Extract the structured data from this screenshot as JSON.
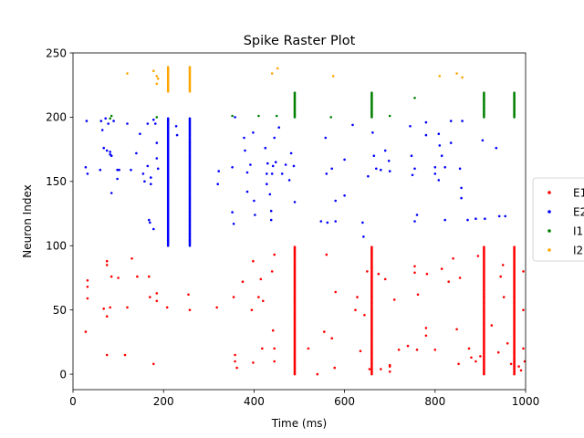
{
  "chart_data": {
    "type": "scatter",
    "title": "Spike Raster Plot",
    "xlabel": "Time (ms)",
    "ylabel": "Neuron Index",
    "xlim": [
      0,
      1000
    ],
    "ylim": [
      -12,
      250
    ],
    "xticks": [
      0,
      200,
      400,
      600,
      800,
      1000
    ],
    "yticks": [
      0,
      50,
      100,
      150,
      200,
      250
    ],
    "grid": false,
    "legend_position": "right (clipped)",
    "legend_labels": [
      "E1",
      "E2",
      "I1",
      "I2"
    ],
    "series": [
      {
        "name": "E1",
        "color": "#ff0000",
        "neurons": [
          0,
          99
        ],
        "bursts": [
          490,
          660,
          908,
          975
        ],
        "points": [
          [
            28,
            33
          ],
          [
            32,
            73
          ],
          [
            32,
            68
          ],
          [
            32,
            59
          ],
          [
            68,
            51
          ],
          [
            75,
            88
          ],
          [
            75,
            85
          ],
          [
            75,
            45
          ],
          [
            75,
            15
          ],
          [
            82,
            52
          ],
          [
            85,
            76
          ],
          [
            100,
            75
          ],
          [
            115,
            15
          ],
          [
            120,
            52
          ],
          [
            130,
            90
          ],
          [
            142,
            76
          ],
          [
            168,
            76
          ],
          [
            170,
            60
          ],
          [
            178,
            8
          ],
          [
            185,
            63
          ],
          [
            185,
            57
          ],
          [
            208,
            52
          ],
          [
            255,
            62
          ],
          [
            258,
            50
          ],
          [
            318,
            52
          ],
          [
            355,
            60
          ],
          [
            358,
            10
          ],
          [
            358,
            15
          ],
          [
            362,
            5
          ],
          [
            375,
            72
          ],
          [
            395,
            50
          ],
          [
            398,
            88
          ],
          [
            398,
            9
          ],
          [
            410,
            60
          ],
          [
            415,
            74
          ],
          [
            418,
            20
          ],
          [
            420,
            57
          ],
          [
            440,
            80
          ],
          [
            445,
            93
          ],
          [
            442,
            34
          ],
          [
            445,
            20
          ],
          [
            445,
            10
          ],
          [
            520,
            20
          ],
          [
            540,
            0
          ],
          [
            555,
            33
          ],
          [
            560,
            93
          ],
          [
            572,
            28
          ],
          [
            580,
            64
          ],
          [
            578,
            5
          ],
          [
            624,
            50
          ],
          [
            628,
            60
          ],
          [
            635,
            18
          ],
          [
            644,
            46
          ],
          [
            650,
            80
          ],
          [
            655,
            4
          ],
          [
            675,
            78
          ],
          [
            680,
            4
          ],
          [
            690,
            74
          ],
          [
            700,
            7
          ],
          [
            700,
            6
          ],
          [
            700,
            2
          ],
          [
            710,
            58
          ],
          [
            720,
            19
          ],
          [
            740,
            22
          ],
          [
            755,
            84
          ],
          [
            755,
            79
          ],
          [
            762,
            62
          ],
          [
            760,
            19
          ],
          [
            780,
            30
          ],
          [
            780,
            36
          ],
          [
            782,
            78
          ],
          [
            800,
            19
          ],
          [
            815,
            82
          ],
          [
            830,
            72
          ],
          [
            840,
            90
          ],
          [
            848,
            35
          ],
          [
            852,
            8
          ],
          [
            855,
            75
          ],
          [
            875,
            20
          ],
          [
            880,
            13
          ],
          [
            890,
            10
          ],
          [
            895,
            92
          ],
          [
            900,
            14
          ],
          [
            925,
            38
          ],
          [
            940,
            17
          ],
          [
            945,
            76
          ],
          [
            950,
            85
          ],
          [
            952,
            60
          ],
          [
            960,
            24
          ],
          [
            968,
            8
          ],
          [
            985,
            6
          ],
          [
            990,
            3
          ],
          [
            995,
            80
          ],
          [
            995,
            50
          ],
          [
            995,
            20
          ],
          [
            998,
            10
          ]
        ]
      },
      {
        "name": "E2",
        "color": "#0000ff",
        "neurons": [
          100,
          199
        ],
        "bursts": [
          210,
          258
        ],
        "points": [
          [
            28,
            161
          ],
          [
            30,
            197
          ],
          [
            32,
            156
          ],
          [
            60,
            159
          ],
          [
            62,
            197
          ],
          [
            65,
            190
          ],
          [
            68,
            176
          ],
          [
            72,
            199
          ],
          [
            75,
            174
          ],
          [
            78,
            195
          ],
          [
            82,
            173
          ],
          [
            85,
            170
          ],
          [
            82,
            171
          ],
          [
            85,
            141
          ],
          [
            90,
            197
          ],
          [
            98,
            159
          ],
          [
            98,
            152
          ],
          [
            102,
            159
          ],
          [
            120,
            195
          ],
          [
            128,
            159
          ],
          [
            140,
            172
          ],
          [
            148,
            187
          ],
          [
            155,
            156
          ],
          [
            158,
            150
          ],
          [
            165,
            195
          ],
          [
            165,
            162
          ],
          [
            172,
            153
          ],
          [
            172,
            148
          ],
          [
            168,
            120
          ],
          [
            170,
            118
          ],
          [
            178,
            113
          ],
          [
            178,
            198
          ],
          [
            182,
            195
          ],
          [
            185,
            180
          ],
          [
            185,
            168
          ],
          [
            188,
            160
          ],
          [
            228,
            193
          ],
          [
            230,
            186
          ],
          [
            322,
            158
          ],
          [
            320,
            148
          ],
          [
            352,
            161
          ],
          [
            352,
            126
          ],
          [
            355,
            117
          ],
          [
            358,
            200
          ],
          [
            378,
            184
          ],
          [
            380,
            174
          ],
          [
            385,
            157
          ],
          [
            385,
            142
          ],
          [
            392,
            163
          ],
          [
            398,
            188
          ],
          [
            400,
            135
          ],
          [
            402,
            124
          ],
          [
            425,
            176
          ],
          [
            428,
            156
          ],
          [
            430,
            164
          ],
          [
            428,
            148
          ],
          [
            435,
            140
          ],
          [
            438,
            127
          ],
          [
            438,
            120
          ],
          [
            440,
            156
          ],
          [
            442,
            162
          ],
          [
            445,
            184
          ],
          [
            448,
            165
          ],
          [
            455,
            192
          ],
          [
            462,
            156
          ],
          [
            470,
            163
          ],
          [
            478,
            151
          ],
          [
            482,
            172
          ],
          [
            488,
            162
          ],
          [
            490,
            134
          ],
          [
            548,
            119
          ],
          [
            558,
            184
          ],
          [
            560,
            156
          ],
          [
            562,
            118
          ],
          [
            572,
            160
          ],
          [
            580,
            135
          ],
          [
            580,
            119
          ],
          [
            600,
            139
          ],
          [
            600,
            167
          ],
          [
            618,
            194
          ],
          [
            640,
            118
          ],
          [
            642,
            107
          ],
          [
            652,
            154
          ],
          [
            662,
            188
          ],
          [
            665,
            170
          ],
          [
            670,
            160
          ],
          [
            680,
            159
          ],
          [
            690,
            174
          ],
          [
            698,
            166
          ],
          [
            700,
            158
          ],
          [
            745,
            193
          ],
          [
            748,
            170
          ],
          [
            750,
            155
          ],
          [
            755,
            119
          ],
          [
            760,
            124
          ],
          [
            755,
            160
          ],
          [
            780,
            196
          ],
          [
            780,
            186
          ],
          [
            800,
            156
          ],
          [
            800,
            161
          ],
          [
            808,
            187
          ],
          [
            810,
            178
          ],
          [
            808,
            151
          ],
          [
            815,
            170
          ],
          [
            822,
            120
          ],
          [
            822,
            161
          ],
          [
            835,
            180
          ],
          [
            835,
            197
          ],
          [
            855,
            160
          ],
          [
            858,
            145
          ],
          [
            858,
            137
          ],
          [
            860,
            197
          ],
          [
            872,
            120
          ],
          [
            890,
            121
          ],
          [
            905,
            182
          ],
          [
            910,
            121
          ],
          [
            935,
            176
          ],
          [
            942,
            123
          ],
          [
            955,
            123
          ]
        ]
      },
      {
        "name": "I1",
        "color": "#008000",
        "neurons": [
          200,
          219
        ],
        "bursts": [
          490,
          660,
          908,
          975
        ],
        "points": [
          [
            82,
            199
          ],
          [
            85,
            201
          ],
          [
            185,
            200
          ],
          [
            352,
            201
          ],
          [
            410,
            201
          ],
          [
            450,
            201
          ],
          [
            570,
            200
          ],
          [
            700,
            201
          ],
          [
            755,
            215
          ]
        ]
      },
      {
        "name": "I2",
        "color": "#ffa500",
        "neurons": [
          220,
          239
        ],
        "bursts": [
          210,
          258
        ],
        "points": [
          [
            120,
            234
          ],
          [
            178,
            236
          ],
          [
            185,
            232
          ],
          [
            185,
            226
          ],
          [
            188,
            230
          ],
          [
            440,
            234
          ],
          [
            452,
            238
          ],
          [
            575,
            232
          ],
          [
            810,
            232
          ],
          [
            848,
            234
          ],
          [
            860,
            231
          ]
        ]
      }
    ]
  }
}
